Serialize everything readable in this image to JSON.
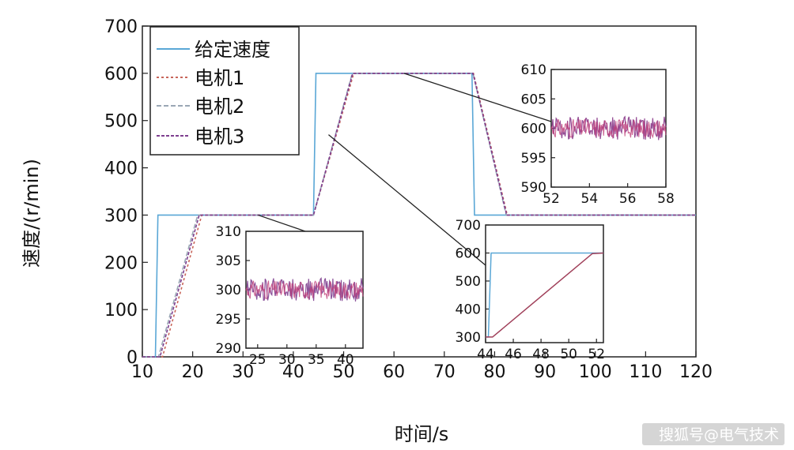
{
  "chart_data": {
    "main": {
      "type": "line",
      "xlabel": "时间/s",
      "ylabel": "速度/(r/min)",
      "xlim": [
        10,
        120
      ],
      "ylim": [
        0,
        700
      ],
      "xticks": [
        10,
        20,
        30,
        40,
        50,
        60,
        70,
        80,
        90,
        100,
        110,
        120
      ],
      "yticks": [
        0,
        100,
        200,
        300,
        400,
        500,
        600,
        700
      ],
      "legend_position": "top-left",
      "series": [
        {
          "name": "给定速度",
          "color": "#5aa7d6",
          "dash": "",
          "x": [
            10,
            12.6,
            13.1,
            44,
            44.5,
            75.5,
            76,
            120
          ],
          "y": [
            0,
            0,
            300,
            300,
            600,
            600,
            300,
            300
          ]
        },
        {
          "name": "电机1",
          "color": "#c8655a",
          "dash": "3,3",
          "x": [
            10,
            14,
            21.8,
            44,
            52,
            75.8,
            82.5,
            120
          ],
          "y": [
            0,
            0,
            300,
            300,
            600,
            600,
            300,
            300
          ]
        },
        {
          "name": "电机2",
          "color": "#9aa7b5",
          "dash": "6,3",
          "x": [
            10,
            13.2,
            21,
            44,
            51.7,
            75.7,
            82.3,
            120
          ],
          "y": [
            0,
            0,
            300,
            300,
            600,
            600,
            300,
            300
          ]
        },
        {
          "name": "电机3",
          "color": "#7e3f8f",
          "dash": "4,2",
          "x": [
            10,
            13.5,
            21.3,
            44,
            51.8,
            75.7,
            82.4,
            120
          ],
          "y": [
            0,
            0,
            300,
            300,
            600,
            600,
            300,
            300
          ]
        }
      ]
    },
    "inset_mid": {
      "type": "line",
      "xlim": [
        23,
        43
      ],
      "ylim": [
        290,
        310
      ],
      "xticks": [
        25,
        30,
        35,
        40
      ],
      "yticks": [
        290,
        295,
        300,
        305,
        310
      ],
      "band_center": 300,
      "band_halfwidth": 2
    },
    "inset_accel": {
      "type": "line",
      "xlim": [
        44,
        52.5
      ],
      "ylim": [
        280,
        700
      ],
      "xticks": [
        44,
        46,
        48,
        50,
        52
      ],
      "yticks": [
        300,
        400,
        500,
        600,
        700
      ],
      "series": [
        {
          "name": "给定速度",
          "color": "#5aa7d6",
          "x": [
            44,
            44.2,
            44.4,
            52.5
          ],
          "y": [
            300,
            300,
            600,
            600
          ]
        },
        {
          "name": "电机",
          "color": "#a0405a",
          "x": [
            44,
            44.5,
            51.7,
            52.5
          ],
          "y": [
            300,
            300,
            598,
            600
          ]
        }
      ]
    },
    "inset_top": {
      "type": "line",
      "xlim": [
        52,
        58
      ],
      "ylim": [
        590,
        610
      ],
      "xticks": [
        52,
        54,
        56,
        58
      ],
      "yticks": [
        590,
        595,
        600,
        605,
        610
      ],
      "band_center": 600,
      "band_halfwidth": 2
    }
  },
  "watermark": "搜狐号@电气技术"
}
